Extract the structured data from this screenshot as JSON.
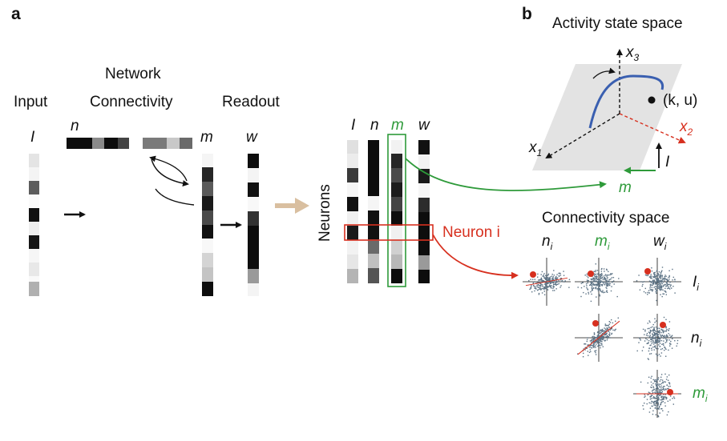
{
  "panel_a": {
    "letter": "a",
    "input_title": "Input",
    "network_title_line1": "Network",
    "network_title_line2": "Connectivity",
    "readout_title": "Readout",
    "vec_I": "I",
    "vec_n": "n",
    "vec_m": "m",
    "vec_w": "w",
    "neurons_label": "Neurons",
    "neuron_i_label": "Neuron i"
  },
  "panel_b": {
    "letter": "b",
    "activity_title": "Activity state space",
    "axis_x1": "x",
    "axis_x1_sub": "1",
    "axis_x2": "x",
    "axis_x2_sub": "2",
    "axis_x3": "x",
    "axis_x3_sub": "3",
    "point_label": "(k, u)",
    "vec_I": "I",
    "vec_m": "m",
    "connectivity_title": "Connectivity space",
    "col_labels": [
      "n",
      "m",
      "w"
    ],
    "row_labels": [
      "I",
      "n",
      "m"
    ],
    "subscript": "i"
  },
  "colors": {
    "green": "#2e9a3a",
    "red": "#d7301f",
    "blue_trajectory": "#3a5fb0",
    "scatter": "#5d7385",
    "arrow_tan": "#d9bfa0",
    "plane": "#e3e3e3"
  }
}
